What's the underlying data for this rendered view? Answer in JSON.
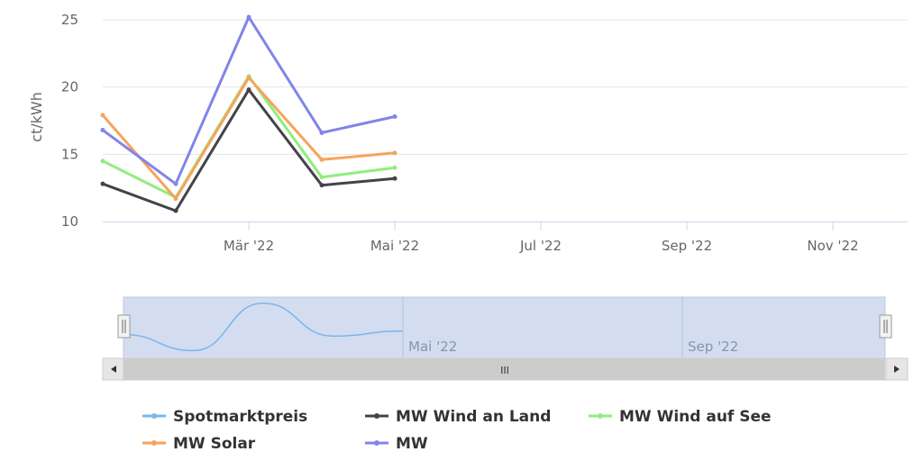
{
  "chart_data": {
    "type": "line",
    "x": [
      "2022-01",
      "2022-02",
      "2022-03",
      "2022-04",
      "2022-05"
    ],
    "xlim": [
      "2022-01",
      "2022-12"
    ],
    "x_tick_labels": [
      "Mär '22",
      "Mai '22",
      "Jul '22",
      "Sep '22",
      "Nov '22"
    ],
    "ylabel": "ct/kWh",
    "ylim": [
      10,
      25
    ],
    "y_ticks": [
      10,
      15,
      20,
      25
    ],
    "grid": true,
    "legend_position": "bottom",
    "series": [
      {
        "name": "Spotmarktpreis",
        "color": "#7cb5ec",
        "values": [
          16.9,
          12.8,
          24.9,
          16.5,
          17.8
        ],
        "navigator_only": true
      },
      {
        "name": "MW Wind an Land",
        "color": "#434348",
        "values": [
          12.8,
          10.8,
          19.8,
          12.7,
          13.2
        ]
      },
      {
        "name": "MW Wind auf See",
        "color": "#90ed7d",
        "values": [
          14.5,
          11.8,
          20.8,
          13.3,
          14.0
        ]
      },
      {
        "name": "MW Solar",
        "color": "#f7a35c",
        "values": [
          17.9,
          11.7,
          20.7,
          14.6,
          15.1
        ]
      },
      {
        "name": "MW",
        "color": "#8085e9",
        "values": [
          16.8,
          12.8,
          25.2,
          16.6,
          17.8
        ]
      }
    ],
    "navigator": {
      "tick_labels": [
        "Mai '22",
        "Sep '22"
      ],
      "scrollbar_label": "III"
    }
  }
}
